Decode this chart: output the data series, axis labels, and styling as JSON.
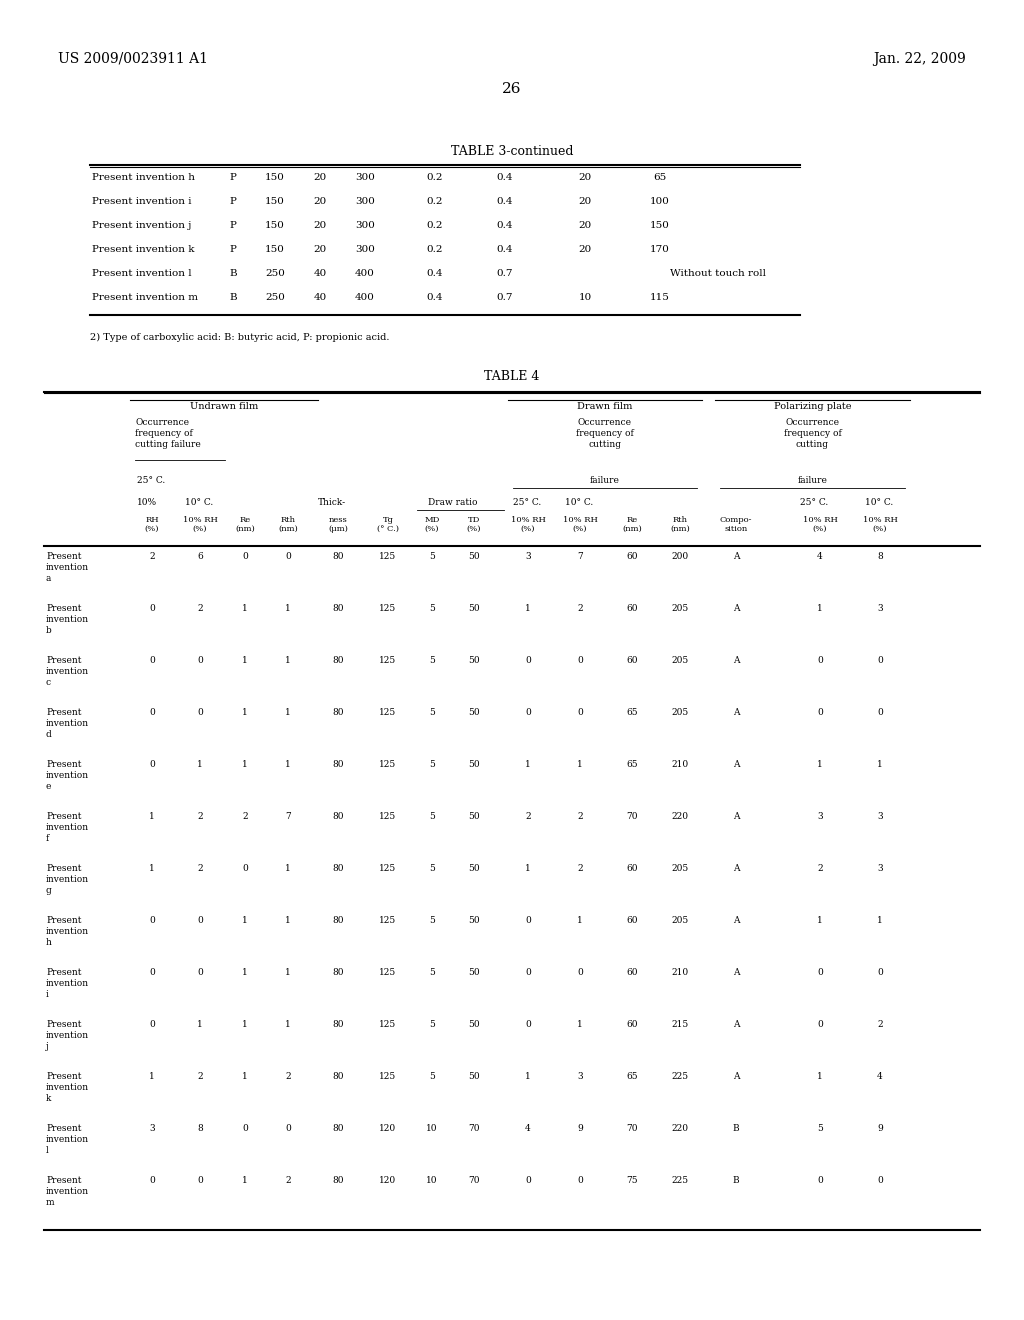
{
  "page_header_left": "US 2009/0023911 A1",
  "page_header_right": "Jan. 22, 2009",
  "page_number": "26",
  "background_color": "#ffffff",
  "text_color": "#000000",
  "table3_title": "TABLE 3-continued",
  "table3_rows": [
    [
      "Present invention h",
      "P",
      "150",
      "20",
      "300",
      "0.2",
      "0.4",
      "20",
      "65"
    ],
    [
      "Present invention i",
      "P",
      "150",
      "20",
      "300",
      "0.2",
      "0.4",
      "20",
      "100"
    ],
    [
      "Present invention j",
      "P",
      "150",
      "20",
      "300",
      "0.2",
      "0.4",
      "20",
      "150"
    ],
    [
      "Present invention k",
      "P",
      "150",
      "20",
      "300",
      "0.2",
      "0.4",
      "20",
      "170"
    ],
    [
      "Present invention l",
      "B",
      "250",
      "40",
      "400",
      "0.4",
      "0.7",
      "Without touch roll",
      ""
    ],
    [
      "Present invention m",
      "B",
      "250",
      "40",
      "400",
      "0.4",
      "0.7",
      "10",
      "115"
    ]
  ],
  "table3_footnote": "2) Type of carboxylic acid: B: butyric acid, P: propionic acid.",
  "table4_title": "TABLE 4",
  "table4_data": [
    [
      "Present\ninvention\na",
      "2",
      "6",
      "0",
      "0",
      "80",
      "125",
      "5",
      "50",
      "3",
      "7",
      "60",
      "200",
      "A",
      "4",
      "8"
    ],
    [
      "Present\ninvention\nb",
      "0",
      "2",
      "1",
      "1",
      "80",
      "125",
      "5",
      "50",
      "1",
      "2",
      "60",
      "205",
      "A",
      "1",
      "3"
    ],
    [
      "Present\ninvention\nc",
      "0",
      "0",
      "1",
      "1",
      "80",
      "125",
      "5",
      "50",
      "0",
      "0",
      "60",
      "205",
      "A",
      "0",
      "0"
    ],
    [
      "Present\ninvention\nd",
      "0",
      "0",
      "1",
      "1",
      "80",
      "125",
      "5",
      "50",
      "0",
      "0",
      "65",
      "205",
      "A",
      "0",
      "0"
    ],
    [
      "Present\ninvention\ne",
      "0",
      "1",
      "1",
      "1",
      "80",
      "125",
      "5",
      "50",
      "1",
      "1",
      "65",
      "210",
      "A",
      "1",
      "1"
    ],
    [
      "Present\ninvention\nf",
      "1",
      "2",
      "2",
      "7",
      "80",
      "125",
      "5",
      "50",
      "2",
      "2",
      "70",
      "220",
      "A",
      "3",
      "3"
    ],
    [
      "Present\ninvention\ng",
      "1",
      "2",
      "0",
      "1",
      "80",
      "125",
      "5",
      "50",
      "1",
      "2",
      "60",
      "205",
      "A",
      "2",
      "3"
    ],
    [
      "Present\ninvention\nh",
      "0",
      "0",
      "1",
      "1",
      "80",
      "125",
      "5",
      "50",
      "0",
      "1",
      "60",
      "205",
      "A",
      "1",
      "1"
    ],
    [
      "Present\ninvention\ni",
      "0",
      "0",
      "1",
      "1",
      "80",
      "125",
      "5",
      "50",
      "0",
      "0",
      "60",
      "210",
      "A",
      "0",
      "0"
    ],
    [
      "Present\ninvention\nj",
      "0",
      "1",
      "1",
      "1",
      "80",
      "125",
      "5",
      "50",
      "0",
      "1",
      "60",
      "215",
      "A",
      "0",
      "2"
    ],
    [
      "Present\ninvention\nk",
      "1",
      "2",
      "1",
      "2",
      "80",
      "125",
      "5",
      "50",
      "1",
      "3",
      "65",
      "225",
      "A",
      "1",
      "4"
    ],
    [
      "Present\ninvention\nl",
      "3",
      "8",
      "0",
      "0",
      "80",
      "120",
      "10",
      "70",
      "4",
      "9",
      "70",
      "220",
      "B",
      "5",
      "9"
    ],
    [
      "Present\ninvention\nm",
      "0",
      "0",
      "1",
      "2",
      "80",
      "120",
      "10",
      "70",
      "0",
      "0",
      "75",
      "225",
      "B",
      "0",
      "0"
    ]
  ]
}
